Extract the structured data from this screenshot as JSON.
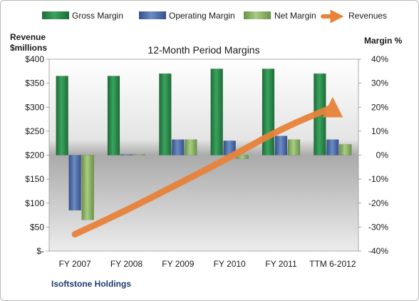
{
  "chart_data": {
    "type": "bar",
    "title": "12-Month Period Margins",
    "company": "Isoftstone Holdings",
    "left_axis_label": [
      "Revenue",
      "$millions"
    ],
    "right_axis_label": "Margin %",
    "categories": [
      "FY 2007",
      "FY 2008",
      "FY 2009",
      "FY 2010",
      "FY 2011",
      "TTM 6-2012"
    ],
    "left_axis": {
      "min": 0,
      "max": 400,
      "step": 50,
      "tick_labels": [
        "$-",
        "$50",
        "$100",
        "$150",
        "$200",
        "$250",
        "$300",
        "$350",
        "$400"
      ]
    },
    "right_axis": {
      "min": -40,
      "max": 40,
      "step": 10,
      "tick_labels": [
        "-40%",
        "-30%",
        "-20%",
        "-10%",
        "0%",
        "10%",
        "20%",
        "30%",
        "40%"
      ]
    },
    "legend_position": "top",
    "series": [
      {
        "name": "Gross Margin",
        "kind": "bar",
        "axis": "right",
        "color": "#2e8b4e",
        "values": [
          33,
          33,
          34,
          36,
          36,
          34
        ]
      },
      {
        "name": "Operating Margin",
        "kind": "bar",
        "axis": "right",
        "color": "#4f6fa8",
        "values": [
          -23,
          0.3,
          6.5,
          6,
          8,
          6.5
        ]
      },
      {
        "name": "Net Margin",
        "kind": "bar",
        "axis": "right",
        "color": "#8db56a",
        "values": [
          -27,
          0.3,
          6.5,
          -1.5,
          6.5,
          4.5
        ]
      },
      {
        "name": "Revenues",
        "kind": "line",
        "axis": "left",
        "color": "#e8823a",
        "values": [
          35,
          85,
          140,
          195,
          255,
          300
        ]
      }
    ]
  }
}
